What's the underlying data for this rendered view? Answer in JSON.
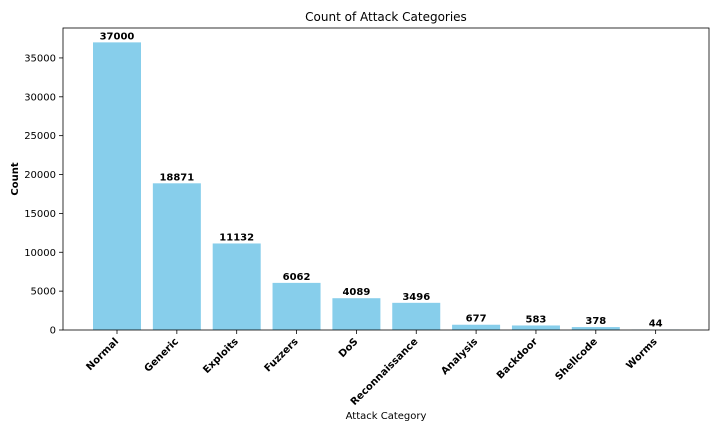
{
  "chart_data": {
    "type": "bar",
    "title": "Count of Attack Categories",
    "xlabel": "Attack Category",
    "ylabel": "Count",
    "categories": [
      "Normal",
      "Generic",
      "Exploits",
      "Fuzzers",
      "DoS",
      "Reconnaissance",
      "Analysis",
      "Backdoor",
      "Shellcode",
      "Worms"
    ],
    "values": [
      37000,
      18871,
      11132,
      6062,
      4089,
      3496,
      677,
      583,
      378,
      44
    ],
    "data_labels": [
      "37000",
      "18871",
      "11132",
      "6062",
      "4089",
      "3496",
      "677",
      "583",
      "378",
      "44"
    ],
    "yticks": [
      0,
      5000,
      10000,
      15000,
      20000,
      25000,
      30000,
      35000
    ],
    "ytick_labels": [
      "0",
      "5000",
      "10000",
      "15000",
      "20000",
      "25000",
      "30000",
      "35000"
    ],
    "ylim": [
      0,
      38850
    ],
    "grid": false,
    "legend": false,
    "bar_color": "#87ceeb",
    "axis_color": "#000000"
  }
}
